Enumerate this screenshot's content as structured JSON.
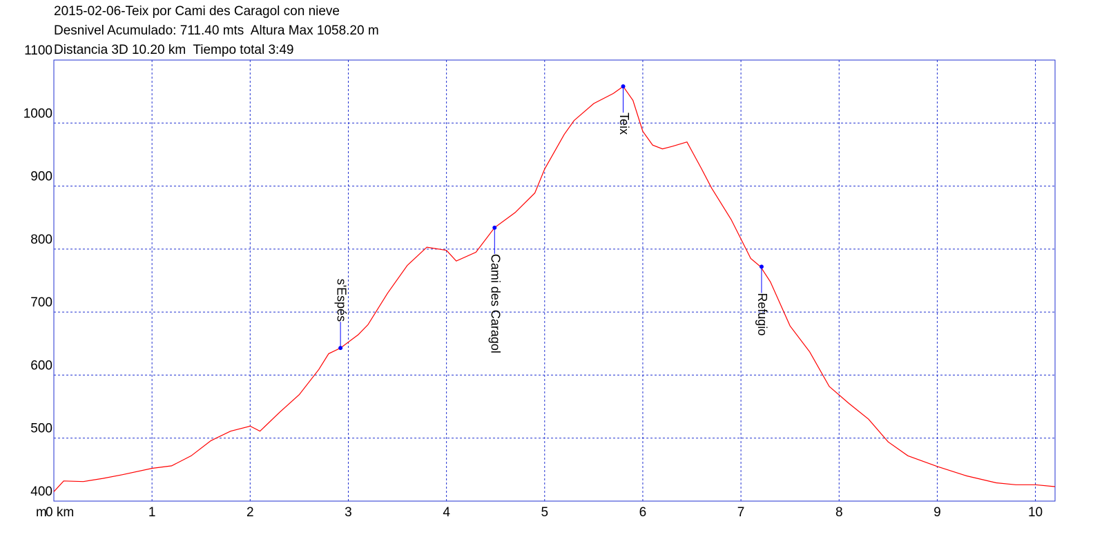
{
  "chart_data": {
    "type": "line",
    "title": "2015-02-06-Teix por Cami des Caragol con nieve",
    "subtitle": [
      "Desnivel Acumulado: 711.40 mts  Altura Max 1058.20 m",
      "Distancia 3D 10.20 km  Tiempo total 3:49"
    ],
    "y_label": "m",
    "x": [
      0,
      0.1,
      0.3,
      0.5,
      0.7,
      1.0,
      1.2,
      1.4,
      1.6,
      1.8,
      2.0,
      2.1,
      2.3,
      2.5,
      2.7,
      2.8,
      2.92,
      3.1,
      3.2,
      3.4,
      3.6,
      3.8,
      4.0,
      4.1,
      4.3,
      4.49,
      4.7,
      4.9,
      5.0,
      5.2,
      5.3,
      5.5,
      5.7,
      5.8,
      5.9,
      6.0,
      6.1,
      6.2,
      6.3,
      6.45,
      6.6,
      6.7,
      6.9,
      7.1,
      7.2,
      7.3,
      7.5,
      7.7,
      7.9,
      8.1,
      8.3,
      8.5,
      8.7,
      9.0,
      9.3,
      9.6,
      9.8,
      10.0,
      10.2
    ],
    "values": [
      415,
      432,
      431,
      436,
      442,
      452,
      456,
      472,
      496,
      511,
      519,
      511,
      541,
      569,
      609,
      634,
      643,
      664,
      680,
      730,
      774,
      803,
      798,
      781,
      795,
      834,
      858,
      889,
      927,
      982,
      1004,
      1031,
      1047,
      1058.2,
      1036,
      987,
      965,
      959,
      963,
      970,
      927,
      897,
      847,
      785,
      772,
      748,
      678,
      637,
      582,
      555,
      530,
      494,
      472,
      455,
      440,
      429,
      426,
      426,
      423
    ],
    "color": "#ff0000",
    "annotations": [
      {
        "label": "s'Espés",
        "x": 2.92,
        "y": 643
      },
      {
        "label": "Cami des Caragol",
        "x": 4.49,
        "y": 834
      },
      {
        "label": "Teix",
        "x": 5.8,
        "y": 1058.2
      },
      {
        "label": "Refugio",
        "x": 7.21,
        "y": 772
      }
    ],
    "marker_color": "#0000ff",
    "xlim": [
      0,
      10.2
    ],
    "ylim": [
      400,
      1100
    ],
    "xticks": [
      {
        "value": 0,
        "label": "0 km"
      },
      1,
      2,
      3,
      4,
      5,
      6,
      7,
      8,
      9,
      10
    ],
    "yticks": [
      400,
      500,
      600,
      700,
      800,
      900,
      1000,
      1100
    ],
    "grid": true
  }
}
